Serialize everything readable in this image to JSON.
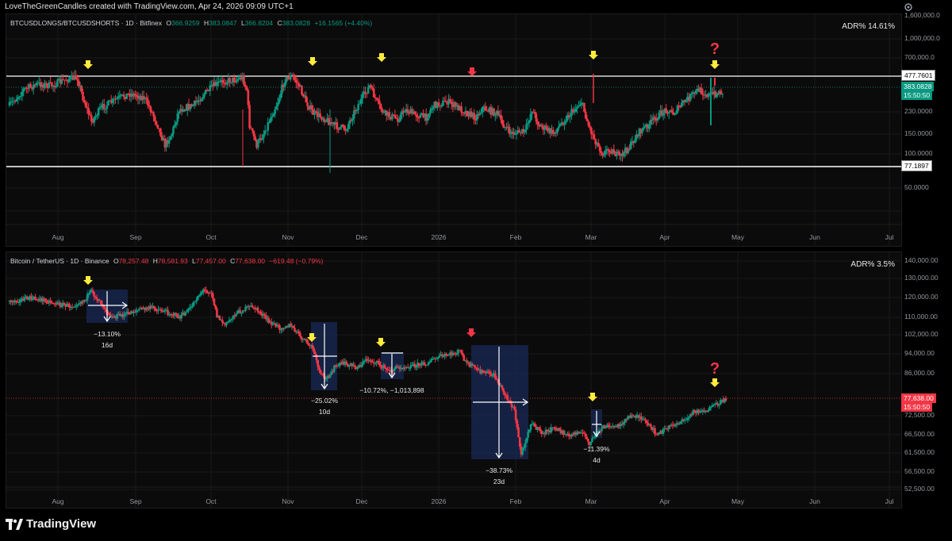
{
  "header": {
    "credit": "LoveTheGreenCandles created with TradingView.com, Apr 24, 2026 09:09 UTC+1"
  },
  "brand": {
    "name": "TradingView",
    "icon": "tradingview-logo-icon"
  },
  "colors": {
    "up": "#089981",
    "down": "#f23645",
    "arrow_yellow": "#ffeb3b",
    "arrow_red": "#f23645",
    "question": "#f23645"
  },
  "x_axis": [
    "Aug",
    "Sep",
    "Oct",
    "Nov",
    "Dec",
    "2026",
    "Feb",
    "Mar",
    "Apr",
    "May",
    "Jun",
    "Jul"
  ],
  "top_chart": {
    "symbol": "BTCUSDLONGS/BTCUSDSHORTS · 1D · Bitfinex",
    "ohlc": {
      "o_label": "O",
      "o": "366.9259",
      "h_label": "H",
      "h": "383.0847",
      "l_label": "L",
      "l": "366.8204",
      "c_label": "C",
      "c": "383.0828",
      "change": "+16.1565 (+4.40%)"
    },
    "adr": "ADR%  14.61%",
    "y_ticks": [
      "1,600,000.0",
      "1,000,000.0",
      "700,000.0",
      "477.7601",
      "383.0828",
      "230.0000",
      "150.0000",
      "100.0000",
      "77.1897",
      "50.0000"
    ],
    "price_tags": {
      "upper_line": "477.7601",
      "last_price": "383.0828",
      "countdown": "15:50:50",
      "lower_line": "77.1897"
    },
    "question": "?"
  },
  "bottom_chart": {
    "symbol": "Bitcoin / TetherUS · 1D · Binance",
    "ohlc": {
      "o_label": "O",
      "o": "78,257.48",
      "h_label": "H",
      "h": "78,581.93",
      "l_label": "L",
      "l": "77,457.00",
      "c_label": "C",
      "c": "77,638.00",
      "change": "−619.48 (−0.79%)"
    },
    "adr": "ADR%  3.5%",
    "y_ticks": [
      "140,000.00",
      "130,000.00",
      "120,000.00",
      "110,000.00",
      "102,000.00",
      "94,000.00",
      "86,000.00",
      "72,500.00",
      "66,500.00",
      "61,500.00",
      "56,500.00",
      "52,500.00"
    ],
    "price_tags": {
      "last_price": "77,638.00",
      "countdown": "15:50:50"
    },
    "measurements": [
      {
        "pct": "−13.10%",
        "days": "16d"
      },
      {
        "pct": "−25.02%",
        "days": "10d"
      },
      {
        "pct": "−10.72%, −1,013,898",
        "days": ""
      },
      {
        "pct": "−38.73%",
        "days": "23d"
      },
      {
        "pct": "−11.39%",
        "days": "4d"
      }
    ],
    "question": "?"
  }
}
